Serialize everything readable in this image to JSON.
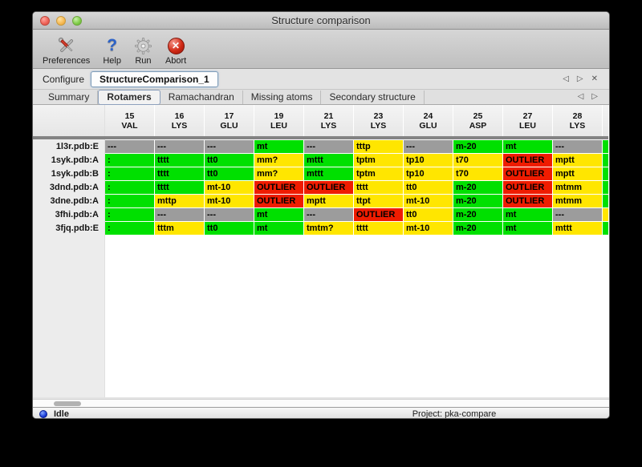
{
  "window": {
    "title": "Structure comparison"
  },
  "toolbar": {
    "buttons": [
      {
        "label": "Preferences"
      },
      {
        "label": "Help"
      },
      {
        "label": "Run"
      },
      {
        "label": "Abort"
      }
    ]
  },
  "configure": {
    "label": "Configure",
    "value": "StructureComparison_1"
  },
  "glyphs": {
    "prev": "◁",
    "next": "▷",
    "close": "✕",
    "help": "?",
    "abort": "✕"
  },
  "tabs": {
    "items": [
      {
        "label": "Summary",
        "active": false
      },
      {
        "label": "Rotamers",
        "active": true
      },
      {
        "label": "Ramachandran",
        "active": false
      },
      {
        "label": "Missing atoms",
        "active": false
      },
      {
        "label": "Secondary structure",
        "active": false
      }
    ]
  },
  "table": {
    "columns": [
      {
        "num": "15",
        "res": "VAL"
      },
      {
        "num": "16",
        "res": "LYS"
      },
      {
        "num": "17",
        "res": "GLU"
      },
      {
        "num": "19",
        "res": "LEU"
      },
      {
        "num": "21",
        "res": "LYS"
      },
      {
        "num": "23",
        "res": "LYS"
      },
      {
        "num": "24",
        "res": "GLU"
      },
      {
        "num": "25",
        "res": "ASP"
      },
      {
        "num": "27",
        "res": "LEU"
      },
      {
        "num": "28",
        "res": "LYS"
      }
    ],
    "rows": [
      {
        "label": "1l3r.pdb:E",
        "sliver": "green",
        "cells": [
          {
            "t": "---",
            "c": "gray"
          },
          {
            "t": "---",
            "c": "gray"
          },
          {
            "t": "---",
            "c": "gray"
          },
          {
            "t": "mt",
            "c": "green"
          },
          {
            "t": "---",
            "c": "gray"
          },
          {
            "t": "tttp",
            "c": "yellow"
          },
          {
            "t": "---",
            "c": "gray"
          },
          {
            "t": "m-20",
            "c": "green"
          },
          {
            "t": "mt",
            "c": "green"
          },
          {
            "t": "---",
            "c": "gray"
          }
        ]
      },
      {
        "label": "1syk.pdb:A",
        "sliver": "green",
        "cells": [
          {
            "t": ":",
            "c": "green"
          },
          {
            "t": "tttt",
            "c": "green"
          },
          {
            "t": "tt0",
            "c": "green"
          },
          {
            "t": "mm?",
            "c": "yellow"
          },
          {
            "t": "mttt",
            "c": "green"
          },
          {
            "t": "tptm",
            "c": "yellow"
          },
          {
            "t": "tp10",
            "c": "yellow"
          },
          {
            "t": "t70",
            "c": "yellow"
          },
          {
            "t": "OUTLIER",
            "c": "red"
          },
          {
            "t": "mptt",
            "c": "yellow"
          }
        ]
      },
      {
        "label": "1syk.pdb:B",
        "sliver": "green",
        "cells": [
          {
            "t": ":",
            "c": "green"
          },
          {
            "t": "tttt",
            "c": "green"
          },
          {
            "t": "tt0",
            "c": "green"
          },
          {
            "t": "mm?",
            "c": "yellow"
          },
          {
            "t": "mttt",
            "c": "green"
          },
          {
            "t": "tptm",
            "c": "yellow"
          },
          {
            "t": "tp10",
            "c": "yellow"
          },
          {
            "t": "t70",
            "c": "yellow"
          },
          {
            "t": "OUTLIER",
            "c": "red"
          },
          {
            "t": "mptt",
            "c": "yellow"
          }
        ]
      },
      {
        "label": "3dnd.pdb:A",
        "sliver": "green",
        "cells": [
          {
            "t": ":",
            "c": "green"
          },
          {
            "t": "tttt",
            "c": "green"
          },
          {
            "t": "mt-10",
            "c": "yellow"
          },
          {
            "t": "OUTLIER",
            "c": "red"
          },
          {
            "t": "OUTLIER",
            "c": "red"
          },
          {
            "t": "tttt",
            "c": "yellow"
          },
          {
            "t": "tt0",
            "c": "yellow"
          },
          {
            "t": "m-20",
            "c": "green"
          },
          {
            "t": "OUTLIER",
            "c": "red"
          },
          {
            "t": "mtmm",
            "c": "yellow"
          }
        ]
      },
      {
        "label": "3dne.pdb:A",
        "sliver": "green",
        "cells": [
          {
            "t": ":",
            "c": "green"
          },
          {
            "t": "mttp",
            "c": "yellow"
          },
          {
            "t": "mt-10",
            "c": "yellow"
          },
          {
            "t": "OUTLIER",
            "c": "red"
          },
          {
            "t": "mptt",
            "c": "yellow"
          },
          {
            "t": "ttpt",
            "c": "yellow"
          },
          {
            "t": "mt-10",
            "c": "yellow"
          },
          {
            "t": "m-20",
            "c": "green"
          },
          {
            "t": "OUTLIER",
            "c": "red"
          },
          {
            "t": "mtmm",
            "c": "yellow"
          }
        ]
      },
      {
        "label": "3fhi.pdb:A",
        "sliver": "yellow",
        "cells": [
          {
            "t": ":",
            "c": "green"
          },
          {
            "t": "---",
            "c": "gray"
          },
          {
            "t": "---",
            "c": "gray"
          },
          {
            "t": "mt",
            "c": "green"
          },
          {
            "t": "---",
            "c": "gray"
          },
          {
            "t": "OUTLIER",
            "c": "red"
          },
          {
            "t": "tt0",
            "c": "yellow"
          },
          {
            "t": "m-20",
            "c": "green"
          },
          {
            "t": "mt",
            "c": "green"
          },
          {
            "t": "---",
            "c": "gray"
          }
        ]
      },
      {
        "label": "3fjq.pdb:E",
        "sliver": "green",
        "cells": [
          {
            "t": ":",
            "c": "green"
          },
          {
            "t": "tttm",
            "c": "yellow"
          },
          {
            "t": "tt0",
            "c": "green"
          },
          {
            "t": "mt",
            "c": "green"
          },
          {
            "t": "tmtm?",
            "c": "yellow"
          },
          {
            "t": "tttt",
            "c": "yellow"
          },
          {
            "t": "mt-10",
            "c": "yellow"
          },
          {
            "t": "m-20",
            "c": "green"
          },
          {
            "t": "mt",
            "c": "green"
          },
          {
            "t": "mttt",
            "c": "yellow"
          }
        ]
      }
    ]
  },
  "status": {
    "state": "Idle",
    "project": "Project: pka-compare"
  },
  "colors": {
    "green": "#00e000",
    "yellow": "#ffe600",
    "red": "#ef1c00",
    "gray": "#9c9c9c"
  }
}
